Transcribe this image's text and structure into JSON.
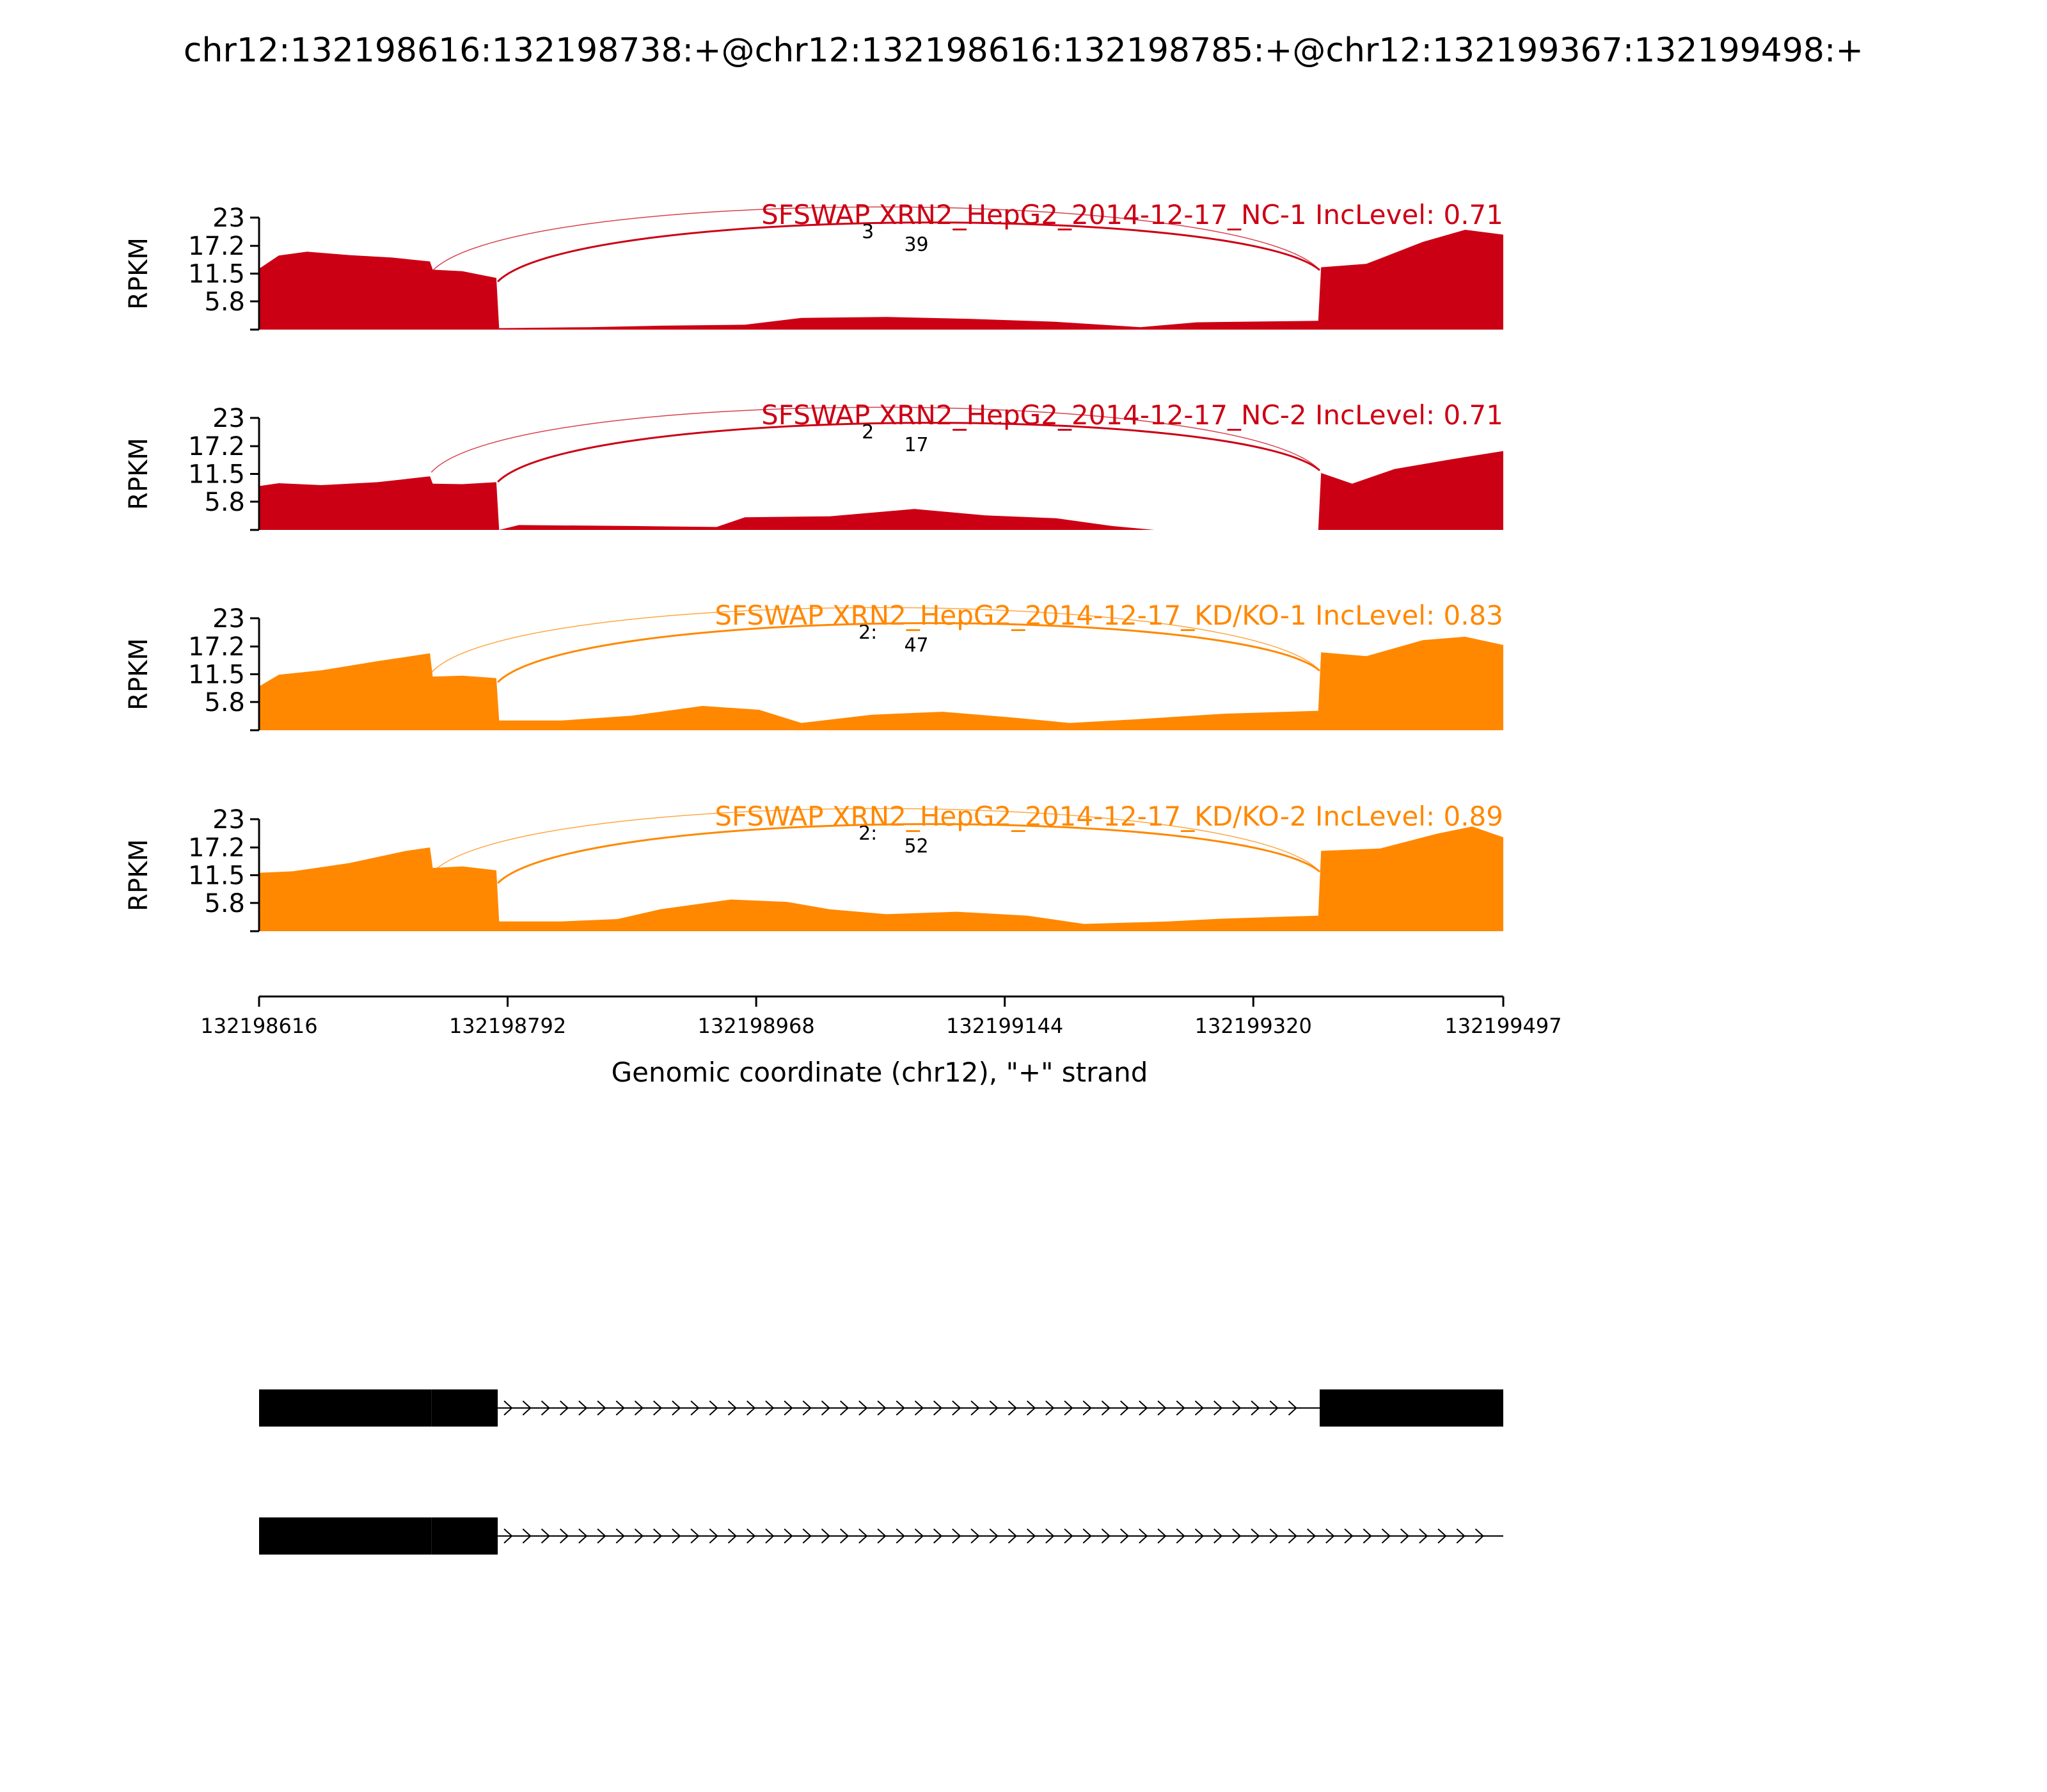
{
  "figure_title": "chr12:132198616:132198738:+@chr12:132198616:132198785:+@chr12:132199367:132199498:+",
  "colors": {
    "control": "#cc0014",
    "knockdown": "#ff8800",
    "axis": "#000000",
    "gene_model": "#000000"
  },
  "chart_data": {
    "type": "area",
    "title": "chr12:132198616:132198738:+@chr12:132198616:132198785:+@chr12:132199367:132199498:+",
    "xlabel": "Genomic coordinate (chr12), \"+\" strand",
    "ylabel": "RPKM",
    "xlim": [
      132198616,
      132199497
    ],
    "x_ticks": [
      132198616,
      132198792,
      132198968,
      132199144,
      132199320,
      132199497
    ],
    "x_tick_labels": [
      "132198616",
      "132198792",
      "132198968",
      "132199144",
      "132199320",
      "132199497"
    ],
    "ylim": [
      0,
      23
    ],
    "y_ticks": [
      5.8,
      11.5,
      17.2,
      23
    ],
    "y_tick_labels": [
      "5.8",
      "11.5",
      "17.2",
      "23"
    ],
    "grid": false,
    "exon_boundaries": {
      "short_exon_end": 132198738,
      "long_exon_end": 132198785,
      "downstream_exon_start": 132199367
    },
    "series": [
      {
        "name": "SFSWAP XRN2_HepG2_2014-12-17_NC-1 IncLevel: 0.71",
        "group": "control",
        "profile": [
          [
            132198616,
            12.5
          ],
          [
            132198630,
            15.2
          ],
          [
            132198650,
            16.0
          ],
          [
            132198680,
            15.3
          ],
          [
            132198710,
            14.8
          ],
          [
            132198737,
            14.0
          ],
          [
            132198739,
            12.3
          ],
          [
            132198760,
            12.0
          ],
          [
            132198784,
            10.6
          ],
          [
            132198786,
            0.3
          ],
          [
            132198850,
            0.5
          ],
          [
            132198900,
            0.8
          ],
          [
            132198960,
            1.0
          ],
          [
            132199000,
            2.4
          ],
          [
            132199060,
            2.6
          ],
          [
            132199120,
            2.2
          ],
          [
            132199180,
            1.6
          ],
          [
            132199240,
            0.5
          ],
          [
            132199280,
            1.5
          ],
          [
            132199366,
            1.8
          ],
          [
            132199368,
            12.8
          ],
          [
            132199400,
            13.5
          ],
          [
            132199440,
            18.0
          ],
          [
            132199470,
            20.5
          ],
          [
            132199497,
            19.5
          ]
        ],
        "junctions": [
          {
            "from": 132198738,
            "to": 132199367,
            "reads": "3"
          },
          {
            "from": 132198785,
            "to": 132199367,
            "reads": "39"
          }
        ]
      },
      {
        "name": "SFSWAP XRN2_HepG2_2014-12-17_NC-2 IncLevel: 0.71",
        "group": "control",
        "profile": [
          [
            132198616,
            9.0
          ],
          [
            132198630,
            9.6
          ],
          [
            132198660,
            9.2
          ],
          [
            132198700,
            9.8
          ],
          [
            132198737,
            11.0
          ],
          [
            132198739,
            9.5
          ],
          [
            132198760,
            9.4
          ],
          [
            132198784,
            9.8
          ],
          [
            132198786,
            0.0
          ],
          [
            132198800,
            1.0
          ],
          [
            132198880,
            0.8
          ],
          [
            132198940,
            0.6
          ],
          [
            132198960,
            2.6
          ],
          [
            132199020,
            2.8
          ],
          [
            132199080,
            4.3
          ],
          [
            132199130,
            3.0
          ],
          [
            132199180,
            2.4
          ],
          [
            132199220,
            0.8
          ],
          [
            132199250,
            0.0
          ],
          [
            132199366,
            0.0
          ],
          [
            132199368,
            11.7
          ],
          [
            132199390,
            9.5
          ],
          [
            132199420,
            12.5
          ],
          [
            132199460,
            14.5
          ],
          [
            132199497,
            16.2
          ]
        ],
        "junctions": [
          {
            "from": 132198738,
            "to": 132199367,
            "reads": "2"
          },
          {
            "from": 132198785,
            "to": 132199367,
            "reads": "17"
          }
        ]
      },
      {
        "name": "SFSWAP XRN2_HepG2_2014-12-17_KD/KO-1 IncLevel: 0.83",
        "group": "knockdown",
        "profile": [
          [
            132198616,
            9.0
          ],
          [
            132198630,
            11.4
          ],
          [
            132198660,
            12.3
          ],
          [
            132198700,
            14.2
          ],
          [
            132198737,
            15.8
          ],
          [
            132198739,
            11.0
          ],
          [
            132198760,
            11.2
          ],
          [
            132198784,
            10.7
          ],
          [
            132198786,
            2.0
          ],
          [
            132198830,
            2.0
          ],
          [
            132198880,
            3.0
          ],
          [
            132198930,
            5.0
          ],
          [
            132198970,
            4.2
          ],
          [
            132199000,
            1.5
          ],
          [
            132199050,
            3.2
          ],
          [
            132199100,
            3.8
          ],
          [
            132199150,
            2.6
          ],
          [
            132199190,
            1.5
          ],
          [
            132199240,
            2.3
          ],
          [
            132199300,
            3.4
          ],
          [
            132199366,
            4.0
          ],
          [
            132199368,
            16.0
          ],
          [
            132199400,
            15.2
          ],
          [
            132199440,
            18.5
          ],
          [
            132199470,
            19.2
          ],
          [
            132199497,
            17.5
          ]
        ],
        "junctions": [
          {
            "from": 132198738,
            "to": 132199367,
            "reads": "2:"
          },
          {
            "from": 132198785,
            "to": 132199367,
            "reads": "47"
          }
        ]
      },
      {
        "name": "SFSWAP XRN2_HepG2_2014-12-17_KD/KO-2 IncLevel: 0.89",
        "group": "knockdown",
        "profile": [
          [
            132198616,
            12.0
          ],
          [
            132198640,
            12.3
          ],
          [
            132198680,
            14.0
          ],
          [
            132198720,
            16.5
          ],
          [
            132198737,
            17.2
          ],
          [
            132198739,
            13.0
          ],
          [
            132198760,
            13.3
          ],
          [
            132198784,
            12.5
          ],
          [
            132198786,
            2.0
          ],
          [
            132198830,
            2.0
          ],
          [
            132198870,
            2.5
          ],
          [
            132198900,
            4.5
          ],
          [
            132198950,
            6.5
          ],
          [
            132198990,
            6.0
          ],
          [
            132199020,
            4.5
          ],
          [
            132199060,
            3.5
          ],
          [
            132199110,
            4.0
          ],
          [
            132199160,
            3.2
          ],
          [
            132199200,
            1.5
          ],
          [
            132199260,
            2.0
          ],
          [
            132199300,
            2.6
          ],
          [
            132199366,
            3.2
          ],
          [
            132199368,
            16.5
          ],
          [
            132199410,
            17.0
          ],
          [
            132199450,
            20.0
          ],
          [
            132199475,
            21.5
          ],
          [
            132199497,
            19.3
          ]
        ],
        "junctions": [
          {
            "from": 132198738,
            "to": 132199367,
            "reads": "2:"
          },
          {
            "from": 132198785,
            "to": 132199367,
            "reads": "52"
          }
        ]
      }
    ],
    "gene_model": {
      "strand": "+",
      "transcripts": [
        {
          "exons": [
            {
              "start": 132198616,
              "end": 132198738
            },
            {
              "start": 132198738,
              "end": 132198785
            },
            {
              "start": 132199367,
              "end": 132199497
            }
          ],
          "intron_end": 132199367
        },
        {
          "exons": [
            {
              "start": 132198616,
              "end": 132198738
            },
            {
              "start": 132198738,
              "end": 132198785
            }
          ],
          "intron_end": 132199497
        }
      ]
    }
  }
}
